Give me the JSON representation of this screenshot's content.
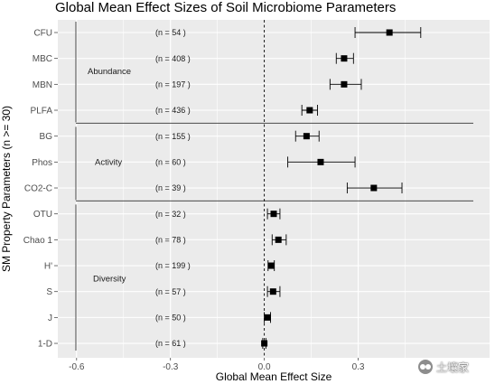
{
  "chart_data": {
    "type": "forest",
    "title": "Global Mean Effect Sizes of Soil Microbiome Parameters",
    "xlabel": "Global Mean Effect Size",
    "ylabel": "SM Property Parameters (n >= 30)",
    "xlim": [
      -0.66,
      0.72
    ],
    "x_ticks": [
      -0.6,
      -0.3,
      0,
      0.3
    ],
    "x_tick_labels": [
      "-0.6",
      "-0.3",
      "0.0",
      "0.3"
    ],
    "reference_line": 0,
    "grid": true,
    "rows": [
      {
        "label": "CFU",
        "n_label": "(n =  54 )",
        "mean": 0.4,
        "lower": 0.29,
        "upper": 0.5
      },
      {
        "label": "MBC",
        "n_label": "(n = 408 )",
        "mean": 0.255,
        "lower": 0.23,
        "upper": 0.285
      },
      {
        "label": "MBN",
        "n_label": "(n = 197 )",
        "mean": 0.255,
        "lower": 0.21,
        "upper": 0.31
      },
      {
        "label": "PLFA",
        "n_label": "(n = 436 )",
        "mean": 0.145,
        "lower": 0.12,
        "upper": 0.17
      },
      {
        "label": "BG",
        "n_label": "(n = 155 )",
        "mean": 0.135,
        "lower": 0.1,
        "upper": 0.175
      },
      {
        "label": "Phos",
        "n_label": "(n =  60 )",
        "mean": 0.18,
        "lower": 0.075,
        "upper": 0.29
      },
      {
        "label": "CO2-C",
        "n_label": "(n =  39 )",
        "mean": 0.35,
        "lower": 0.265,
        "upper": 0.44
      },
      {
        "label": "OTU",
        "n_label": "(n =  32 )",
        "mean": 0.03,
        "lower": 0.01,
        "upper": 0.05
      },
      {
        "label": "Chao 1",
        "n_label": "(n =  78 )",
        "mean": 0.045,
        "lower": 0.025,
        "upper": 0.07
      },
      {
        "label": "H'",
        "n_label": "(n = 199 )",
        "mean": 0.022,
        "lower": 0.012,
        "upper": 0.032
      },
      {
        "label": "S",
        "n_label": "(n =  57 )",
        "mean": 0.028,
        "lower": 0.01,
        "upper": 0.05
      },
      {
        "label": "J",
        "n_label": "(n =  50 )",
        "mean": 0.01,
        "lower": 0.0,
        "upper": 0.02
      },
      {
        "label": "1-D",
        "n_label": "(n =  61 )",
        "mean": 0.0,
        "lower": -0.005,
        "upper": 0.005
      }
    ],
    "groups": [
      {
        "label": "Abundance",
        "rows": [
          "CFU",
          "MBC",
          "MBN",
          "PLFA"
        ]
      },
      {
        "label": "Activity",
        "rows": [
          "BG",
          "Phos",
          "CO2-C"
        ]
      },
      {
        "label": "Diversity",
        "rows": [
          "OTU",
          "Chao 1",
          "H'",
          "S",
          "J",
          "1-D"
        ]
      }
    ],
    "colors": {
      "panel_bg": "#ebebeb",
      "grid": "#ffffff",
      "marker": "#000000",
      "ci_line": "#000000",
      "separator": "#333333"
    }
  },
  "watermark": {
    "icon": "wechat-logo-icon",
    "text": "土壤家"
  }
}
